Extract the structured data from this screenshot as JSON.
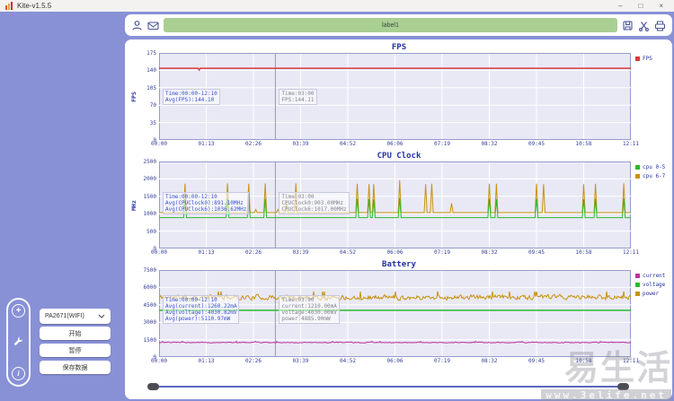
{
  "window": {
    "title": "Kite-v1.5.5",
    "controls": {
      "minimize": "–",
      "maximize": "□",
      "close": "×"
    }
  },
  "toolbar": {
    "label": "label1"
  },
  "sidebar": {
    "device_dropdown": {
      "value": "PA2671(WIFI)"
    },
    "start_button": "开始",
    "pause_button": "暂停",
    "save_button": "保存数据"
  },
  "watermark": {
    "brand": "易生活",
    "site": "www.3elife.net"
  },
  "chart_data": [
    {
      "type": "line",
      "title": "FPS",
      "ylabel": "FPS",
      "ylim": [
        0,
        175
      ],
      "yticks": [
        0,
        35,
        70,
        105,
        140,
        175
      ],
      "xticks": [
        "00:00",
        "01:13",
        "02:26",
        "03:39",
        "04:52",
        "06:06",
        "07:19",
        "08:32",
        "09:45",
        "10:58",
        "12:11"
      ],
      "legend": [
        {
          "label": "FPS",
          "color": "#d93a3a"
        }
      ],
      "cursor": {
        "f": 0.2465
      },
      "series": [
        {
          "name": "FPS",
          "color": "#d93a3a",
          "kind": "flat",
          "base": 144.1,
          "dips": [
            [
              0.085,
              140.5
            ]
          ]
        }
      ],
      "annotations": {
        "summary": {
          "lines": [
            "Time:00:00-12:10",
            "Avg(FPS):144.10"
          ],
          "color": "#3a4fd0",
          "y": 40
        },
        "cursor": {
          "lines": [
            "Time:03:00",
            "FPS:144.11"
          ],
          "color": "#83838d",
          "y": 40
        }
      }
    },
    {
      "type": "line",
      "title": "CPU Clock",
      "ylabel": "MHz",
      "ylim": [
        0,
        2500
      ],
      "yticks": [
        0,
        500,
        1000,
        1500,
        2000,
        2500
      ],
      "xticks": [
        "00:00",
        "01:13",
        "02:26",
        "03:39",
        "04:52",
        "06:06",
        "07:19",
        "08:32",
        "09:45",
        "10:58",
        "12:11"
      ],
      "legend": [
        {
          "label": "cpu 0-5",
          "color": "#2db92d"
        },
        {
          "label": "cpu 6-7",
          "color": "#c8920a"
        }
      ],
      "cursor": {
        "f": 0.2465
      },
      "series": [
        {
          "name": "cpu 6-7",
          "color": "#c8920a",
          "kind": "spiky",
          "base": 1030,
          "spikes": [
            [
              0.055,
              1860
            ],
            [
              0.145,
              1870
            ],
            [
              0.19,
              1860
            ],
            [
              0.205,
              1120
            ],
            [
              0.225,
              1870
            ],
            [
              0.252,
              1120
            ],
            [
              0.27,
              1300
            ],
            [
              0.29,
              1870
            ],
            [
              0.42,
              1860
            ],
            [
              0.445,
              1850
            ],
            [
              0.455,
              1850
            ],
            [
              0.51,
              1960
            ],
            [
              0.565,
              1850
            ],
            [
              0.578,
              1860
            ],
            [
              0.62,
              1300
            ],
            [
              0.7,
              1860
            ],
            [
              0.715,
              1860
            ],
            [
              0.8,
              1860
            ],
            [
              0.815,
              1850
            ],
            [
              0.9,
              1850
            ],
            [
              0.925,
              1860
            ],
            [
              0.985,
              1870
            ]
          ]
        },
        {
          "name": "cpu 0-5",
          "color": "#2db92d",
          "kind": "spiky",
          "base": 885,
          "spikes": [
            [
              0.055,
              1430
            ],
            [
              0.145,
              1440
            ],
            [
              0.19,
              1420
            ],
            [
              0.225,
              1430
            ],
            [
              0.42,
              1430
            ],
            [
              0.445,
              1420
            ],
            [
              0.455,
              1410
            ],
            [
              0.51,
              1450
            ],
            [
              0.7,
              1430
            ],
            [
              0.715,
              1420
            ],
            [
              0.8,
              1430
            ],
            [
              0.9,
              1420
            ],
            [
              0.925,
              1430
            ],
            [
              0.985,
              1440
            ]
          ]
        }
      ],
      "annotations": {
        "summary": {
          "lines": [
            "Time:00:00-12:10",
            "Avg(CPUClock0):891.10MHz",
            "Avg(CPUClock6):1036.62MHz"
          ],
          "color": "#3a4fd0",
          "y": 34
        },
        "cursor": {
          "lines": [
            "Time:03:00",
            "CPUClock0:903.00MHz",
            "CPUClock6:1017.00MHz"
          ],
          "color": "#83838d",
          "y": 34
        }
      }
    },
    {
      "type": "line",
      "title": "Battery",
      "ylabel": "",
      "ylim": [
        0,
        7500
      ],
      "yticks": [
        0,
        1500,
        3000,
        4500,
        6000,
        7500
      ],
      "xticks": [
        "00:00",
        "01:13",
        "02:26",
        "03:39",
        "04:52",
        "06:06",
        "07:19",
        "08:32",
        "09:45",
        "10:58",
        "12:11"
      ],
      "legend": [
        {
          "label": "current",
          "color": "#bb3399"
        },
        {
          "label": "voltage",
          "color": "#2db92d"
        },
        {
          "label": "power",
          "color": "#c8920a"
        }
      ],
      "cursor": {
        "f": 0.2465
      },
      "series": [
        {
          "name": "power",
          "color": "#c8920a",
          "kind": "noisy",
          "base": 5150,
          "amp": 330,
          "seed": 11
        },
        {
          "name": "voltage",
          "color": "#2db92d",
          "kind": "flat",
          "base": 4030
        },
        {
          "name": "current",
          "color": "#bb3399",
          "kind": "noisy",
          "base": 1255,
          "amp": 60,
          "seed": 23
        }
      ],
      "annotations": {
        "summary": {
          "lines": [
            "Time:00:00-12:10",
            "Avg(current):1260.22mA",
            "Avg(voltage):4030.82mV",
            "Avg(power):5110.97mW"
          ],
          "color": "#3a4fd0",
          "y": 28
        },
        "cursor": {
          "lines": [
            "Time:03:00",
            "current:1210.00mA",
            "voltage:4030.00mV",
            "power:4885.90mW"
          ],
          "color": "#83838d",
          "y": 28
        }
      }
    }
  ]
}
